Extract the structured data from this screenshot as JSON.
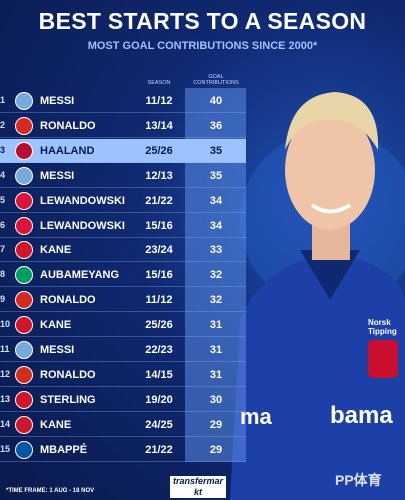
{
  "header": {
    "title": "BEST STARTS TO A SEASON",
    "subtitle": "MOST GOAL CONTRIBUTIONS SINCE 2000*"
  },
  "table": {
    "columns": [
      "SEASON",
      "GOAL CONTRIBUTIONS"
    ],
    "highlight_row": 2,
    "rows": [
      {
        "rank": 1,
        "flag": "#75aadb",
        "player": "MESSI",
        "season": "11/12",
        "contributions": 40
      },
      {
        "rank": 2,
        "flag": "#d52b1e",
        "player": "RONALDO",
        "season": "13/14",
        "contributions": 36
      },
      {
        "rank": 3,
        "flag": "#ba0c2f",
        "player": "HAALAND",
        "season": "25/26",
        "contributions": 35
      },
      {
        "rank": 4,
        "flag": "#75aadb",
        "player": "MESSI",
        "season": "12/13",
        "contributions": 35
      },
      {
        "rank": 5,
        "flag": "#dc143c",
        "player": "LEWANDOWSKI",
        "season": "21/22",
        "contributions": 34
      },
      {
        "rank": 6,
        "flag": "#dc143c",
        "player": "LEWANDOWSKI",
        "season": "15/16",
        "contributions": 34
      },
      {
        "rank": 7,
        "flag": "#cf142b",
        "player": "KANE",
        "season": "23/24",
        "contributions": 33
      },
      {
        "rank": 8,
        "flag": "#009e60",
        "player": "AUBAMEYANG",
        "season": "15/16",
        "contributions": 32
      },
      {
        "rank": 9,
        "flag": "#d52b1e",
        "player": "RONALDO",
        "season": "11/12",
        "contributions": 32
      },
      {
        "rank": 10,
        "flag": "#cf142b",
        "player": "KANE",
        "season": "25/26",
        "contributions": 31
      },
      {
        "rank": 11,
        "flag": "#75aadb",
        "player": "MESSI",
        "season": "22/23",
        "contributions": 31
      },
      {
        "rank": 12,
        "flag": "#d52b1e",
        "player": "RONALDO",
        "season": "14/15",
        "contributions": 31
      },
      {
        "rank": 13,
        "flag": "#cf142b",
        "player": "STERLING",
        "season": "19/20",
        "contributions": 30
      },
      {
        "rank": 14,
        "flag": "#cf142b",
        "player": "KANE",
        "season": "24/25",
        "contributions": 29
      },
      {
        "rank": 15,
        "flag": "#0055a4",
        "player": "MBAPPÉ",
        "season": "21/22",
        "contributions": 29
      }
    ]
  },
  "shirt": {
    "sponsor_small": "Norsk Tipping",
    "sponsor_large": "bama",
    "sponsor_partial": "ma"
  },
  "footer": {
    "note": "*TIME FRAME: 1 AUG - 18 NOV",
    "logo": "transfermarkt",
    "watermark": "PP体育"
  }
}
